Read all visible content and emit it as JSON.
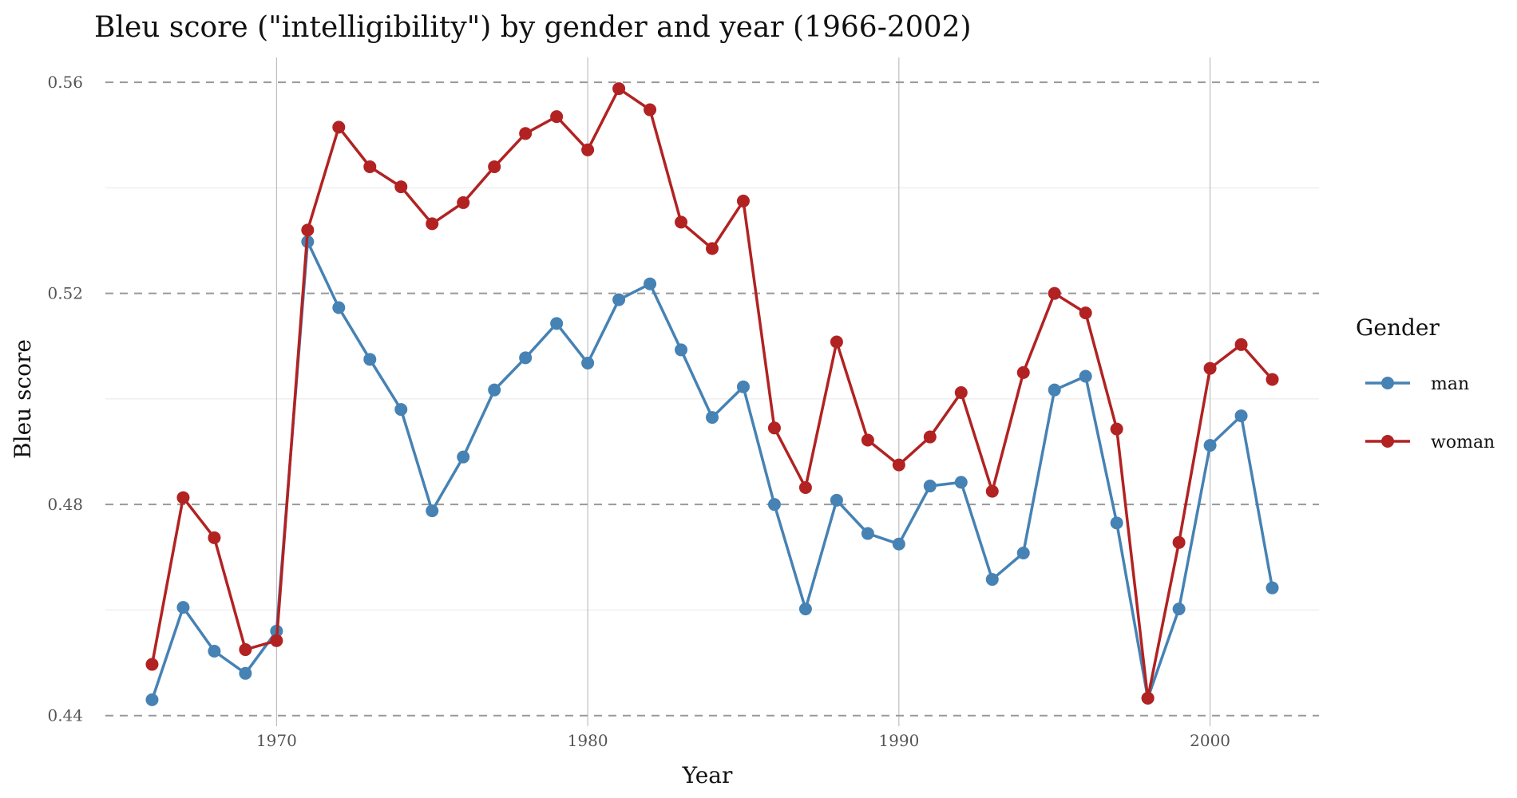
{
  "chart_data": {
    "type": "line",
    "title": "Bleu score (\"intelligibility\") by gender and year (1966-2002)",
    "xlabel": "Year",
    "ylabel": "Bleu score",
    "xlim": [
      1964.5,
      2003.5
    ],
    "ylim": [
      0.4395,
      0.5635
    ],
    "x_ticks": [
      1970,
      1980,
      1990,
      2000
    ],
    "x_tick_labels": [
      "1970",
      "1980",
      "1990",
      "2000"
    ],
    "y_ticks": [
      0.44,
      0.48,
      0.52,
      0.56
    ],
    "y_tick_labels": [
      "0.44",
      "0.48",
      "0.52",
      "0.56"
    ],
    "y_minor_ticks": [
      0.46,
      0.5,
      0.54
    ],
    "legend_title": "Gender",
    "legend_position": "right",
    "x": [
      1966,
      1967,
      1968,
      1969,
      1970,
      1971,
      1972,
      1973,
      1974,
      1975,
      1976,
      1977,
      1978,
      1979,
      1980,
      1981,
      1982,
      1983,
      1984,
      1985,
      1986,
      1987,
      1988,
      1989,
      1990,
      1991,
      1992,
      1993,
      1994,
      1995,
      1996,
      1997,
      1998,
      1999,
      2000,
      2001,
      2002
    ],
    "series": [
      {
        "name": "man",
        "color": "#4682b4",
        "values": [
          0.443,
          0.4605,
          0.4522,
          0.448,
          0.456,
          0.5298,
          0.5173,
          0.5075,
          0.498,
          0.4788,
          0.489,
          0.5017,
          0.5078,
          0.5143,
          0.5068,
          0.5188,
          0.5218,
          0.5093,
          0.4965,
          0.5023,
          0.48,
          0.4602,
          0.4808,
          0.4745,
          0.4725,
          0.4835,
          0.4842,
          0.4658,
          0.4708,
          0.5017,
          0.5043,
          0.4765,
          0.4433,
          0.4602,
          0.4912,
          0.4968,
          0.4642
        ]
      },
      {
        "name": "woman",
        "color": "#b22222",
        "values": [
          0.4497,
          0.4813,
          0.4737,
          0.4525,
          0.4542,
          0.532,
          0.5515,
          0.544,
          0.5402,
          0.5332,
          0.5372,
          0.544,
          0.5503,
          0.5535,
          0.5472,
          0.5588,
          0.5548,
          0.5335,
          0.5285,
          0.5375,
          0.4945,
          0.4832,
          0.5108,
          0.4922,
          0.4875,
          0.4928,
          0.5012,
          0.4825,
          0.505,
          0.52,
          0.5163,
          0.4943,
          0.4433,
          0.4728,
          0.5058,
          0.5103,
          0.5037
        ]
      }
    ]
  }
}
